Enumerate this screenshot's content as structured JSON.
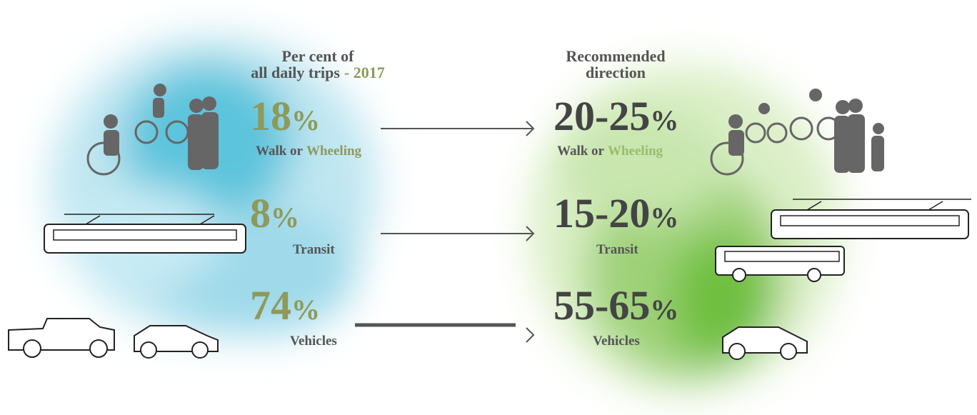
{
  "left": {
    "title": "Per cent of all daily trips",
    "title_highlight": "- 2017",
    "rows": [
      {
        "value": "18",
        "unit": "%",
        "label": "Walk or",
        "label_highlight": "Wheeling"
      },
      {
        "value": "8",
        "unit": "%",
        "label": "Transit"
      },
      {
        "value": "74",
        "unit": "%",
        "label": "Vehicles"
      }
    ]
  },
  "right": {
    "title": "Recommended direction",
    "rows": [
      {
        "value": "20-25",
        "unit": "%",
        "label": "Walk or",
        "label_highlight": "Wheeling"
      },
      {
        "value": "15-20",
        "unit": "%",
        "label": "Transit"
      },
      {
        "value": "55-65",
        "unit": "%",
        "label": "Vehicles"
      }
    ]
  }
}
